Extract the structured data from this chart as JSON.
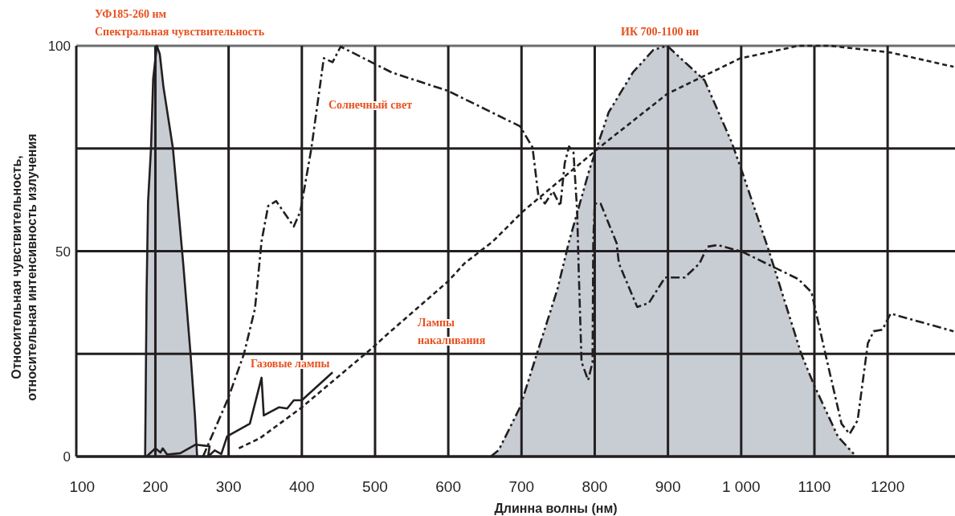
{
  "chart_data": {
    "type": "line",
    "xlabel": "Длинна волны (нм)",
    "ylabel": "Относительная чувствительность,\nотносительная интенсивность излучения",
    "xlim": [
      92,
      1292
    ],
    "ylim": [
      0,
      100
    ],
    "xticks": [
      100,
      200,
      300,
      400,
      500,
      600,
      700,
      800,
      900,
      {
        "value": 1000,
        "label": "1 000"
      },
      1100,
      1200
    ],
    "yticks": [
      0,
      {
        "value": 25,
        "label": null
      },
      50,
      {
        "value": 75,
        "label": null
      },
      100
    ],
    "grid": true,
    "marker": "none",
    "series": [
      {
        "type": "area",
        "color": "#c8ccd3",
        "line_style": "solid",
        "x": [
          186,
          188,
          190,
          194,
          197,
          202,
          206,
          211,
          224,
          238,
          248,
          254,
          257
        ],
        "values": [
          0,
          40,
          62,
          75,
          92,
          100,
          98,
          90,
          75,
          47,
          25,
          10,
          0
        ]
      },
      {
        "type": "area",
        "color": "#c8ccd3",
        "line_style": "dashdotdot",
        "x": [
          658,
          669,
          698,
          721,
          749,
          765,
          793,
          819,
          852,
          880,
          899,
          950,
          987,
          1001,
          1038,
          1082,
          1100,
          1132,
          1157
        ],
        "values": [
          0,
          1.6,
          12,
          25,
          40.7,
          52.4,
          70,
          83.8,
          93.5,
          99,
          100,
          91.6,
          76.5,
          69.5,
          50,
          25,
          17.2,
          4.9,
          0
        ]
      },
      {
        "color": "#231f20",
        "line_style": "dashdot",
        "x": [
          265,
          299,
          321,
          336,
          345,
          354,
          365,
          389,
          398,
          413,
          430,
          442,
          453,
          523,
          600,
          698,
          715,
          723,
          732,
          743,
          753,
          759,
          765,
          771,
          776,
          778,
          782,
          791,
          797,
          798,
          800,
          808,
          830,
          833,
          858,
          874,
          896,
          923,
          943,
          954,
          968,
          1001,
          1078,
          1096,
          1115,
          1137,
          1148,
          1159,
          1173,
          1181,
          1193,
          1204,
          1290
        ],
        "values": [
          0,
          14,
          25,
          36,
          52.4,
          61,
          62.2,
          56,
          59.7,
          75,
          97,
          96,
          99.8,
          93.5,
          89,
          80.4,
          75.3,
          63.6,
          61.6,
          64.6,
          61,
          71.4,
          75.5,
          74,
          59.7,
          46,
          23,
          18.6,
          23,
          52.4,
          61.6,
          61.6,
          51.9,
          47,
          36.4,
          37.4,
          43.6,
          43.6,
          47,
          51.1,
          51.5,
          49.9,
          43.2,
          40,
          25,
          8,
          5.5,
          8.8,
          27.6,
          30.5,
          30.9,
          34.8,
          30.5
        ]
      },
      {
        "color": "#231f20",
        "line_style": "dashed",
        "x": [
          314,
          343,
          398,
          496,
          515,
          600,
          622,
          661,
          702,
          808,
          899,
          998,
          1078,
          1122,
          1203,
          1290
        ],
        "values": [
          2,
          4.5,
          11.7,
          26.4,
          29.5,
          42.7,
          47,
          52.4,
          59.7,
          75.5,
          88.3,
          96.9,
          100,
          100,
          98.4,
          94.9
        ]
      },
      {
        "color": "#231f20",
        "line_style": "solid",
        "x": [
          188,
          200,
          207,
          210,
          216,
          234,
          255,
          274,
          272,
          281,
          290,
          298,
          329,
          345,
          348,
          369,
          380,
          389,
          400,
          442
        ],
        "values": [
          0,
          2,
          1,
          2,
          0.5,
          0.8,
          2.9,
          2.5,
          0,
          1.5,
          0.6,
          4.9,
          8,
          19.2,
          10,
          12,
          11.7,
          13.7,
          13.7,
          20.5
        ]
      }
    ],
    "annotations": [
      "УФ185-260 нм\nСпектральная чувствительность",
      "ИК 700-1100 ни",
      "Солнечный свет",
      "Лампы\nнакаливания",
      "Газовые лампы"
    ]
  }
}
